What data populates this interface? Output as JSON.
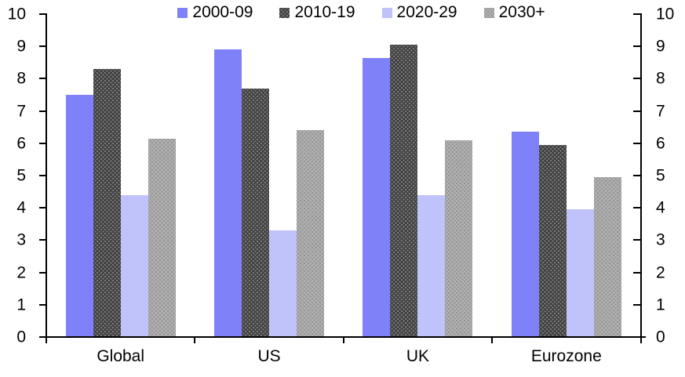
{
  "chart": {
    "background": "#ffffff",
    "axis_color": "#000000",
    "text_color": "#000000"
  },
  "chart_data": {
    "type": "bar",
    "title": "",
    "categories": [
      "Global",
      "US",
      "UK",
      "Eurozone"
    ],
    "series": [
      {
        "name": "2000-09",
        "color": "#7f81f8",
        "pattern": "solid",
        "values": [
          7.5,
          8.9,
          8.65,
          6.35
        ]
      },
      {
        "name": "2010-19",
        "color": "#3e3e3e",
        "pattern": "light-dots",
        "values": [
          8.3,
          7.7,
          9.05,
          5.95
        ]
      },
      {
        "name": "2020-29",
        "color": "#c0c2fa",
        "pattern": "solid",
        "values": [
          4.4,
          3.3,
          4.4,
          3.95
        ]
      },
      {
        "name": "2030+",
        "color": "#b1b1b1",
        "pattern": "dark-dots",
        "values": [
          6.15,
          6.4,
          6.1,
          4.95
        ]
      }
    ],
    "ylim": [
      0,
      10
    ],
    "y_ticks": [
      0,
      1,
      2,
      3,
      4,
      5,
      6,
      7,
      8,
      9,
      10
    ],
    "y_axis_left": true,
    "y_axis_right": true,
    "right_axis_same_scale": true,
    "legend_position": "top",
    "grid": false
  }
}
